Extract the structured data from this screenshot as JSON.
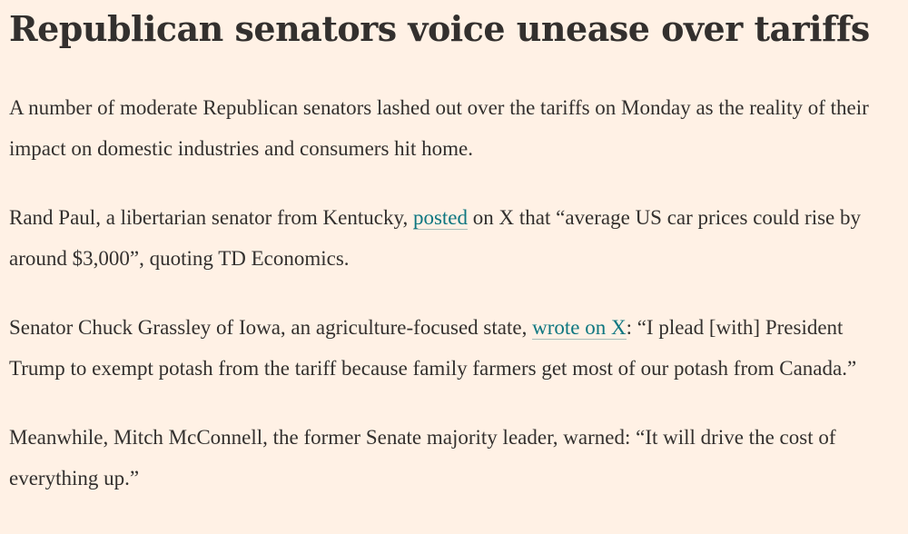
{
  "page": {
    "background_color": "#FFF1E5",
    "text_color": "#33302E",
    "link_color": "#0D7680"
  },
  "article": {
    "headline": "Republican senators voice unease over tariffs",
    "paragraphs": [
      {
        "segments": [
          {
            "type": "text",
            "text": "A number of moderate Republican senators lashed out over the tariffs on Monday as the reality of their impact on domestic industries and consumers hit home."
          }
        ]
      },
      {
        "segments": [
          {
            "type": "text",
            "text": "Rand Paul, a libertarian senator from Kentucky, "
          },
          {
            "type": "link",
            "text": "posted"
          },
          {
            "type": "text",
            "text": " on X that “average US car prices could rise by around $3,000”, quoting TD Economics."
          }
        ]
      },
      {
        "segments": [
          {
            "type": "text",
            "text": "Senator Chuck Grassley of Iowa, an agriculture-focused state, "
          },
          {
            "type": "link",
            "text": "wrote on X"
          },
          {
            "type": "text",
            "text": ": “I plead [with] President Trump to exempt potash from the tariff because family farmers get most of our potash from Canada.”"
          }
        ]
      },
      {
        "segments": [
          {
            "type": "text",
            "text": "Meanwhile, Mitch McConnell, the former Senate majority leader, warned: “It will drive the cost of everything up.”"
          }
        ]
      }
    ]
  }
}
